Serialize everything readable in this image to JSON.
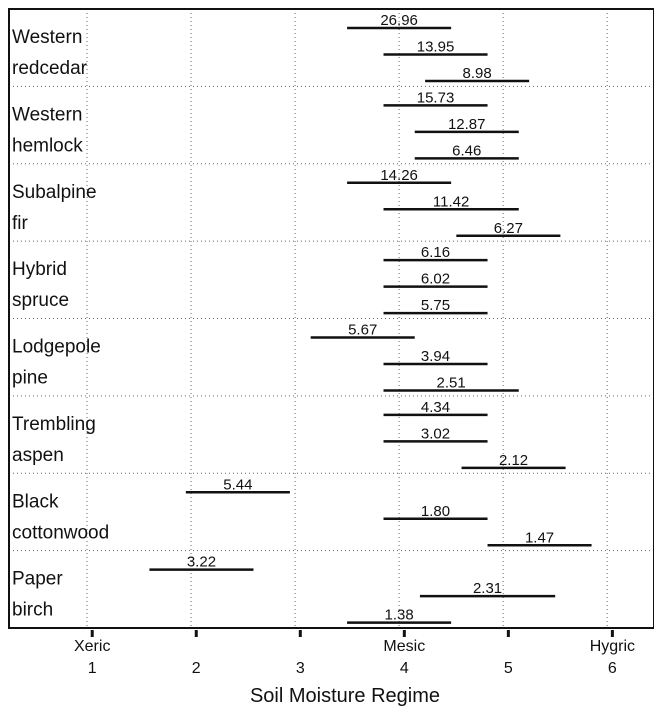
{
  "chart_data": {
    "type": "range-bar",
    "xlabel": "Soil Moisture Regime",
    "xlim": [
      0.2,
      6.4
    ],
    "x_ticks": [
      {
        "value": 1,
        "label": "1",
        "word": "Xeric"
      },
      {
        "value": 2,
        "label": "2",
        "word": ""
      },
      {
        "value": 3,
        "label": "3",
        "word": ""
      },
      {
        "value": 4,
        "label": "4",
        "word": "Mesic"
      },
      {
        "value": 5,
        "label": "5",
        "word": ""
      },
      {
        "value": 6,
        "label": "6",
        "word": "Hygric"
      }
    ],
    "grid_lines_x": [
      0.95,
      1.95,
      2.95,
      3.95,
      4.95,
      5.95
    ],
    "grid": true,
    "groups": [
      {
        "name_lines": [
          "Western",
          "redcedar"
        ],
        "bars": [
          {
            "label": "26.96",
            "x_start": 3.45,
            "x_end": 4.45
          },
          {
            "label": "13.95",
            "x_start": 3.8,
            "x_end": 4.8
          },
          {
            "label": "8.98",
            "x_start": 4.2,
            "x_end": 5.2
          }
        ]
      },
      {
        "name_lines": [
          "Western",
          "hemlock"
        ],
        "bars": [
          {
            "label": "15.73",
            "x_start": 3.8,
            "x_end": 4.8
          },
          {
            "label": "12.87",
            "x_start": 4.1,
            "x_end": 5.1
          },
          {
            "label": "6.46",
            "x_start": 4.1,
            "x_end": 5.1
          }
        ]
      },
      {
        "name_lines": [
          "Subalpine",
          "fir"
        ],
        "bars": [
          {
            "label": "14.26",
            "x_start": 3.45,
            "x_end": 4.45
          },
          {
            "label": "11.42",
            "x_start": 3.8,
            "x_end": 5.1
          },
          {
            "label": "6.27",
            "x_start": 4.5,
            "x_end": 5.5
          }
        ]
      },
      {
        "name_lines": [
          "Hybrid",
          "spruce"
        ],
        "bars": [
          {
            "label": "6.16",
            "x_start": 3.8,
            "x_end": 4.8
          },
          {
            "label": "6.02",
            "x_start": 3.8,
            "x_end": 4.8
          },
          {
            "label": "5.75",
            "x_start": 3.8,
            "x_end": 4.8
          }
        ]
      },
      {
        "name_lines": [
          "Lodgepole",
          "pine"
        ],
        "bars": [
          {
            "label": "5.67",
            "x_start": 3.1,
            "x_end": 4.1
          },
          {
            "label": "3.94",
            "x_start": 3.8,
            "x_end": 4.8
          },
          {
            "label": "2.51",
            "x_start": 3.8,
            "x_end": 5.1
          }
        ]
      },
      {
        "name_lines": [
          "Trembling",
          "aspen"
        ],
        "bars": [
          {
            "label": "4.34",
            "x_start": 3.8,
            "x_end": 4.8
          },
          {
            "label": "3.02",
            "x_start": 3.8,
            "x_end": 4.8
          },
          {
            "label": "2.12",
            "x_start": 4.55,
            "x_end": 5.55
          }
        ]
      },
      {
        "name_lines": [
          "Black",
          "cottonwood"
        ],
        "bars": [
          {
            "label": "5.44",
            "x_start": 1.9,
            "x_end": 2.9
          },
          {
            "label": "1.80",
            "x_start": 3.8,
            "x_end": 4.8
          },
          {
            "label": "1.47",
            "x_start": 4.8,
            "x_end": 5.8
          }
        ]
      },
      {
        "name_lines": [
          "Paper",
          "birch"
        ],
        "bars": [
          {
            "label": "3.22",
            "x_start": 1.55,
            "x_end": 2.55
          },
          {
            "label": "2.31",
            "x_start": 4.15,
            "x_end": 5.45
          },
          {
            "label": "1.38",
            "x_start": 3.45,
            "x_end": 4.45
          }
        ]
      }
    ]
  }
}
